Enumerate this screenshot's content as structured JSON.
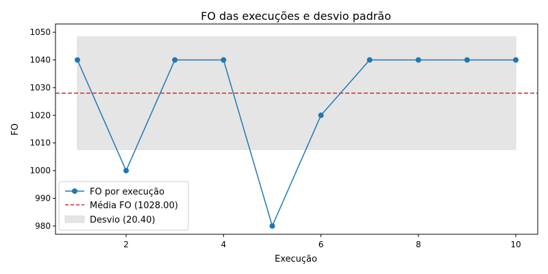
{
  "chart_data": {
    "type": "line",
    "title": "FO das execuções e desvio padrão",
    "xlabel": "Execução",
    "ylabel": "FO",
    "x": [
      1,
      2,
      3,
      4,
      5,
      6,
      7,
      8,
      9,
      10
    ],
    "series": [
      {
        "name": "FO por execução",
        "values": [
          1040,
          1000,
          1040,
          1040,
          980,
          1020,
          1040,
          1040,
          1040,
          1040
        ],
        "color": "#1f77b4"
      }
    ],
    "mean": {
      "label": "Média FO (1028.00)",
      "value": 1028.0,
      "color": "#d62728"
    },
    "band": {
      "label": "Desvio (20.40)",
      "low": 1007.6,
      "high": 1048.4,
      "x_range": [
        1,
        10
      ],
      "color": "#e5e5e5"
    },
    "xlim": [
      0.55,
      10.45
    ],
    "ylim": [
      977,
      1053
    ],
    "xticks": [
      2,
      4,
      6,
      8,
      10
    ],
    "yticks": [
      980,
      990,
      1000,
      1010,
      1020,
      1030,
      1040,
      1050
    ],
    "grid": false,
    "legend_position": "lower-left"
  }
}
